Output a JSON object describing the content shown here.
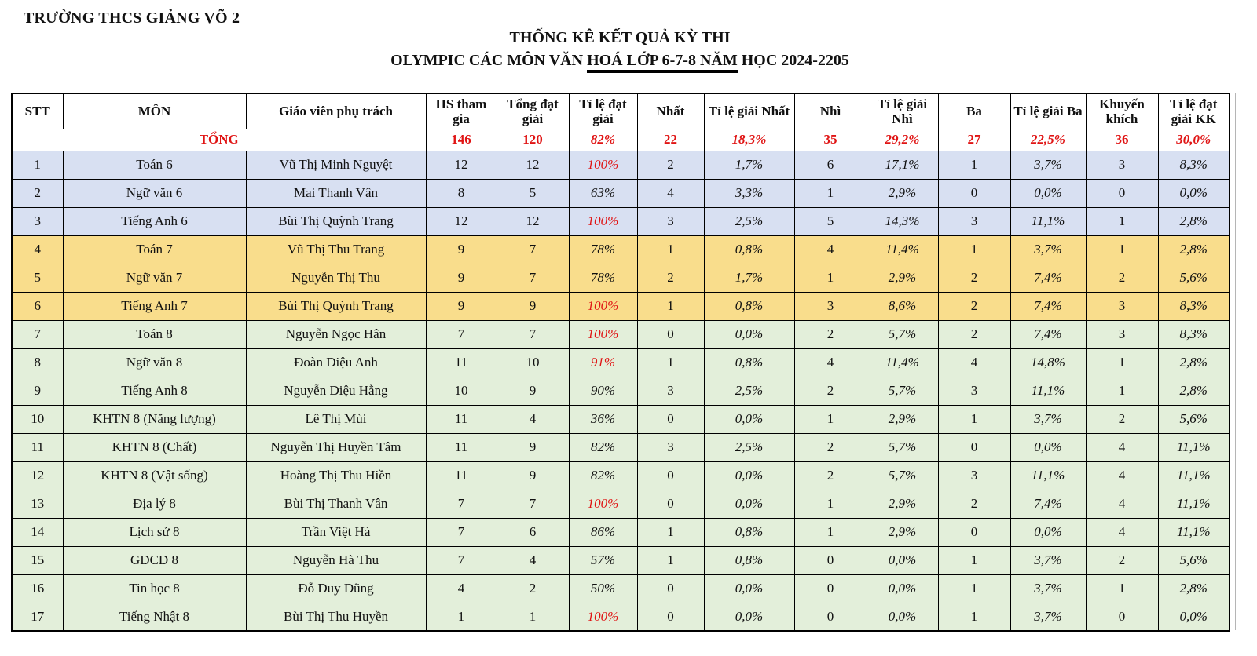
{
  "header": {
    "school": "TRƯỜNG THCS GIẢNG VÕ 2",
    "title_line1": "THỐNG KÊ KẾT QUẢ KỲ THI",
    "title_line2": {
      "pre": "OLYMPIC CÁC MÔN VĂN ",
      "underlined": "HOÁ LỚP 6-7-8 NĂM",
      "post": " HỌC 2024-2205"
    }
  },
  "table": {
    "columns": [
      "STT",
      "MÔN",
      "Giáo viên phụ trách",
      "HS tham gia",
      "Tổng đạt giải",
      "Tỉ lệ đạt giải",
      "Nhất",
      "Tỉ lệ giải Nhất",
      "Nhì",
      "Tỉ lệ giải Nhì",
      "Ba",
      "Tỉ lệ giải Ba",
      "Khuyến khích",
      "Tỉ lệ đạt giải KK"
    ],
    "total": {
      "label": "TỔNG",
      "values": [
        "146",
        "120",
        "82%",
        "22",
        "18,3%",
        "35",
        "29,2%",
        "27",
        "22,5%",
        "36",
        "30,0%"
      ]
    },
    "rows": [
      {
        "stt": "1",
        "subject": "Toán 6",
        "teacher": "Vũ Thị Minh Nguyệt",
        "values": [
          "12",
          "12",
          "100%",
          "2",
          "1,7%",
          "6",
          "17,1%",
          "1",
          "3,7%",
          "3",
          "8,3%"
        ],
        "group": "grade6",
        "rate_red": true
      },
      {
        "stt": "2",
        "subject": "Ngữ văn 6",
        "teacher": "Mai Thanh Vân",
        "values": [
          "8",
          "5",
          "63%",
          "4",
          "3,3%",
          "1",
          "2,9%",
          "0",
          "0,0%",
          "0",
          "0,0%"
        ],
        "group": "grade6",
        "rate_red": false
      },
      {
        "stt": "3",
        "subject": "Tiếng Anh 6",
        "teacher": "Bùi Thị Quỳnh Trang",
        "values": [
          "12",
          "12",
          "100%",
          "3",
          "2,5%",
          "5",
          "14,3%",
          "3",
          "11,1%",
          "1",
          "2,8%"
        ],
        "group": "grade6",
        "rate_red": true
      },
      {
        "stt": "4",
        "subject": "Toán 7",
        "teacher": "Vũ Thị Thu Trang",
        "values": [
          "9",
          "7",
          "78%",
          "1",
          "0,8%",
          "4",
          "11,4%",
          "1",
          "3,7%",
          "1",
          "2,8%"
        ],
        "group": "grade7",
        "rate_red": false
      },
      {
        "stt": "5",
        "subject": "Ngữ văn 7",
        "teacher": "Nguyễn Thị Thu",
        "values": [
          "9",
          "7",
          "78%",
          "2",
          "1,7%",
          "1",
          "2,9%",
          "2",
          "7,4%",
          "2",
          "5,6%"
        ],
        "group": "grade7",
        "rate_red": false
      },
      {
        "stt": "6",
        "subject": "Tiếng Anh 7",
        "teacher": "Bùi Thị Quỳnh Trang",
        "values": [
          "9",
          "9",
          "100%",
          "1",
          "0,8%",
          "3",
          "8,6%",
          "2",
          "7,4%",
          "3",
          "8,3%"
        ],
        "group": "grade7",
        "rate_red": true
      },
      {
        "stt": "7",
        "subject": "Toán 8",
        "teacher": "Nguyễn Ngọc Hân",
        "values": [
          "7",
          "7",
          "100%",
          "0",
          "0,0%",
          "2",
          "5,7%",
          "2",
          "7,4%",
          "3",
          "8,3%"
        ],
        "group": "grade8",
        "rate_red": true
      },
      {
        "stt": "8",
        "subject": "Ngữ văn 8",
        "teacher": "Đoàn Diệu Anh",
        "values": [
          "11",
          "10",
          "91%",
          "1",
          "0,8%",
          "4",
          "11,4%",
          "4",
          "14,8%",
          "1",
          "2,8%"
        ],
        "group": "grade8",
        "rate_red": true
      },
      {
        "stt": "9",
        "subject": "Tiếng Anh 8",
        "teacher": "Nguyễn Diệu Hằng",
        "values": [
          "10",
          "9",
          "90%",
          "3",
          "2,5%",
          "2",
          "5,7%",
          "3",
          "11,1%",
          "1",
          "2,8%"
        ],
        "group": "grade8",
        "rate_red": false
      },
      {
        "stt": "10",
        "subject": "KHTN 8 (Năng lượng)",
        "teacher": "Lê Thị Mùi",
        "values": [
          "11",
          "4",
          "36%",
          "0",
          "0,0%",
          "1",
          "2,9%",
          "1",
          "3,7%",
          "2",
          "5,6%"
        ],
        "group": "grade8",
        "rate_red": false
      },
      {
        "stt": "11",
        "subject": "KHTN 8 (Chất)",
        "teacher": "Nguyễn Thị Huyền Tâm",
        "values": [
          "11",
          "9",
          "82%",
          "3",
          "2,5%",
          "2",
          "5,7%",
          "0",
          "0,0%",
          "4",
          "11,1%"
        ],
        "group": "grade8",
        "rate_red": false
      },
      {
        "stt": "12",
        "subject": "KHTN 8 (Vật sống)",
        "teacher": "Hoàng Thị Thu Hiền",
        "values": [
          "11",
          "9",
          "82%",
          "0",
          "0,0%",
          "2",
          "5,7%",
          "3",
          "11,1%",
          "4",
          "11,1%"
        ],
        "group": "grade8",
        "rate_red": false
      },
      {
        "stt": "13",
        "subject": "Địa lý 8",
        "teacher": "Bùi Thị Thanh Vân",
        "values": [
          "7",
          "7",
          "100%",
          "0",
          "0,0%",
          "1",
          "2,9%",
          "2",
          "7,4%",
          "4",
          "11,1%"
        ],
        "group": "grade8",
        "rate_red": true
      },
      {
        "stt": "14",
        "subject": "Lịch sử 8",
        "teacher": "Trần Việt Hà",
        "values": [
          "7",
          "6",
          "86%",
          "1",
          "0,8%",
          "1",
          "2,9%",
          "0",
          "0,0%",
          "4",
          "11,1%"
        ],
        "group": "grade8",
        "rate_red": false
      },
      {
        "stt": "15",
        "subject": "GDCD 8",
        "teacher": "Nguyễn Hà Thu",
        "values": [
          "7",
          "4",
          "57%",
          "1",
          "0,8%",
          "0",
          "0,0%",
          "1",
          "3,7%",
          "2",
          "5,6%"
        ],
        "group": "grade8",
        "rate_red": false
      },
      {
        "stt": "16",
        "subject": "Tin học 8",
        "teacher": "Đỗ Duy Dũng",
        "values": [
          "4",
          "2",
          "50%",
          "0",
          "0,0%",
          "0",
          "0,0%",
          "1",
          "3,7%",
          "1",
          "2,8%"
        ],
        "group": "grade8",
        "rate_red": false
      },
      {
        "stt": "17",
        "subject": "Tiếng Nhật 8",
        "teacher": "Bùi Thị Thu Huyền",
        "values": [
          "1",
          "1",
          "100%",
          "0",
          "0,0%",
          "0",
          "0,0%",
          "1",
          "3,7%",
          "0",
          "0,0%"
        ],
        "group": "grade8",
        "rate_red": true
      }
    ]
  },
  "colors": {
    "grade6": "#d8e0f2",
    "grade7": "#f9dd8c",
    "grade8": "#e3efda",
    "red": "#e01414",
    "border": "#000000"
  }
}
